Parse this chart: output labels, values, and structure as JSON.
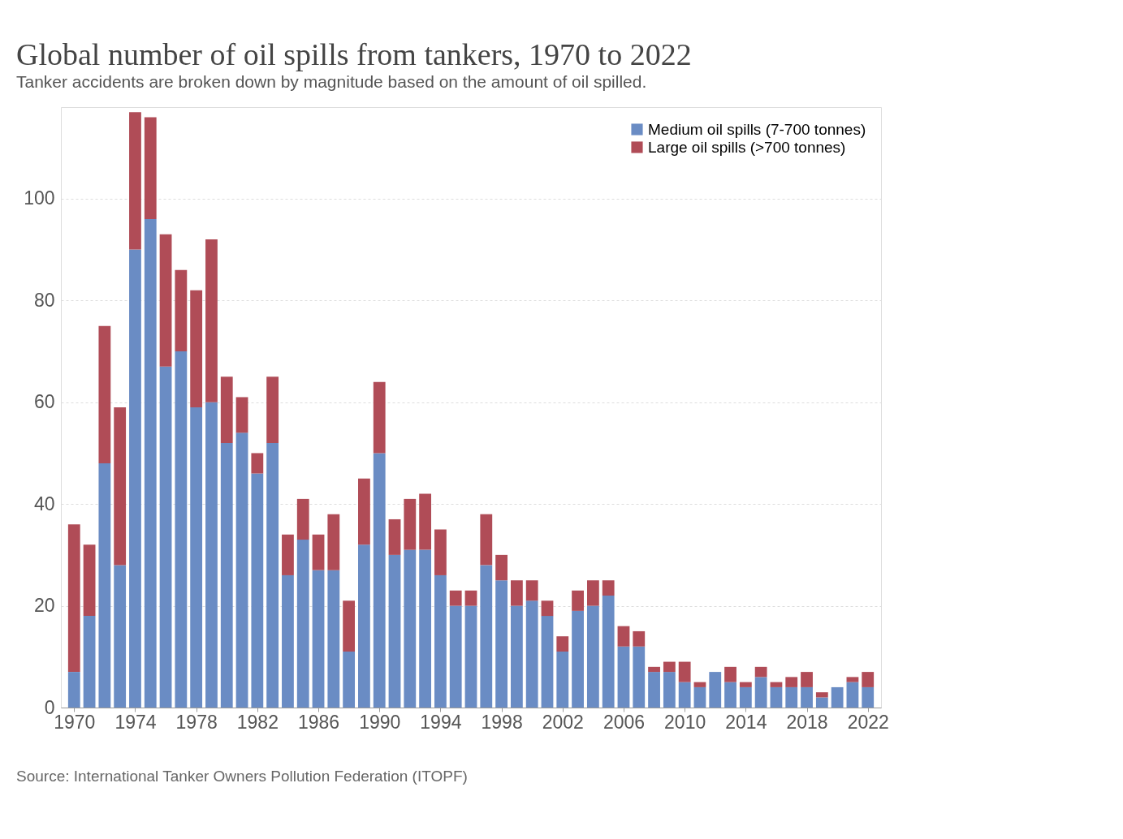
{
  "chart_data": {
    "type": "bar",
    "stacked": true,
    "title": "Global number of oil spills from tankers, 1970 to 2022",
    "subtitle": "Tanker accidents are broken down by magnitude based on the amount of oil spilled.",
    "x": [
      1970,
      1971,
      1972,
      1973,
      1974,
      1975,
      1976,
      1977,
      1978,
      1979,
      1980,
      1981,
      1982,
      1983,
      1984,
      1985,
      1986,
      1987,
      1988,
      1989,
      1990,
      1991,
      1992,
      1993,
      1994,
      1995,
      1996,
      1997,
      1998,
      1999,
      2000,
      2001,
      2002,
      2003,
      2004,
      2005,
      2006,
      2007,
      2008,
      2009,
      2010,
      2011,
      2012,
      2013,
      2014,
      2015,
      2016,
      2017,
      2018,
      2019,
      2020,
      2021,
      2022
    ],
    "series": [
      {
        "name": "Medium oil spills (7-700 tonnes)",
        "color": "#6a8cc4",
        "values": [
          7,
          18,
          48,
          28,
          90,
          96,
          67,
          70,
          59,
          60,
          52,
          54,
          46,
          52,
          26,
          33,
          27,
          27,
          11,
          32,
          50,
          30,
          31,
          31,
          26,
          20,
          20,
          28,
          25,
          20,
          21,
          18,
          11,
          19,
          20,
          22,
          12,
          12,
          7,
          7,
          5,
          4,
          7,
          5,
          4,
          6,
          4,
          4,
          4,
          2,
          4,
          5,
          4
        ]
      },
      {
        "name": "Large oil spills (>700 tonnes)",
        "color": "#b04c57",
        "values": [
          29,
          14,
          27,
          31,
          27,
          20,
          26,
          16,
          23,
          32,
          13,
          7,
          4,
          13,
          8,
          8,
          7,
          11,
          10,
          13,
          14,
          7,
          10,
          11,
          9,
          3,
          3,
          10,
          5,
          5,
          4,
          3,
          3,
          4,
          5,
          3,
          4,
          3,
          1,
          2,
          4,
          1,
          0,
          3,
          1,
          2,
          1,
          2,
          3,
          1,
          0,
          1,
          3
        ]
      }
    ],
    "xlim": [
      1969.4,
      2022.6
    ],
    "xticks": [
      1970,
      1974,
      1978,
      1982,
      1986,
      1990,
      1994,
      1998,
      2002,
      2006,
      2010,
      2014,
      2018,
      2022
    ],
    "ylim": [
      0,
      118
    ],
    "yticks": [
      0,
      20,
      40,
      60,
      80,
      100
    ],
    "grid": "y",
    "legend": "top right",
    "annotations": [
      "Source: International Tanker Owners Pollution Federation (ITOPF)"
    ]
  }
}
